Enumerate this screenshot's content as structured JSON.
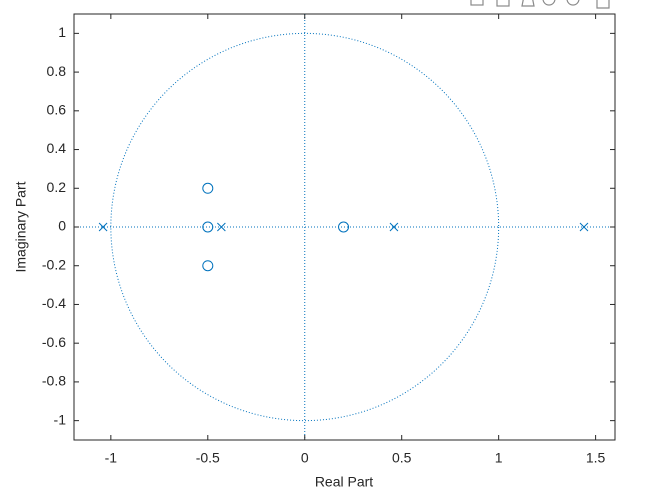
{
  "chart_data": {
    "type": "scatter",
    "xlabel": "Real Part",
    "ylabel": "Imaginary Part",
    "xlim": [
      -1.19,
      1.6
    ],
    "ylim": [
      -1.1,
      1.1
    ],
    "xticks": [
      -1,
      -0.5,
      0,
      0.5,
      1,
      1.5
    ],
    "yticks": [
      -1,
      -0.8,
      -0.6,
      -0.4,
      -0.2,
      0,
      0.2,
      0.4,
      0.6,
      0.8,
      1
    ],
    "series": [
      {
        "marker": "o",
        "color": "#0072bd",
        "x": [
          -0.5,
          -0.5,
          -0.5,
          0.2
        ],
        "values": [
          0.2,
          0,
          -0.2,
          0
        ]
      },
      {
        "marker": "x",
        "color": "#0072bd",
        "x": [
          -1.04,
          -0.43,
          0.46,
          1.44
        ],
        "values": [
          0,
          0,
          0,
          0
        ]
      }
    ]
  }
}
